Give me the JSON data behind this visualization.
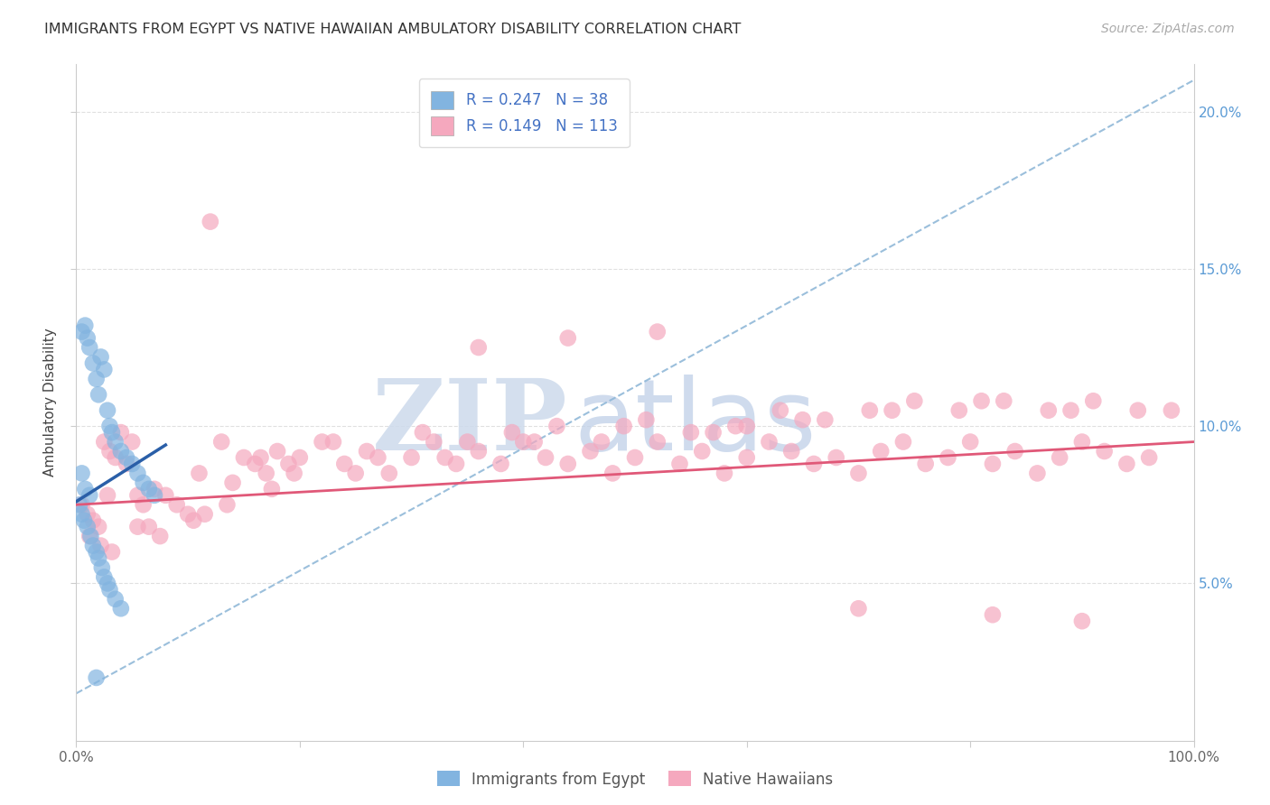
{
  "title": "IMMIGRANTS FROM EGYPT VS NATIVE HAWAIIAN AMBULATORY DISABILITY CORRELATION CHART",
  "source_text": "Source: ZipAtlas.com",
  "ylabel": "Ambulatory Disability",
  "xlim": [
    0.0,
    100.0
  ],
  "ylim": [
    0.0,
    21.5
  ],
  "xticks": [
    0.0,
    20.0,
    40.0,
    60.0,
    80.0,
    100.0
  ],
  "yticks": [
    5.0,
    10.0,
    15.0,
    20.0
  ],
  "ytick_labels_right": [
    "5.0%",
    "10.0%",
    "15.0%",
    "20.0%"
  ],
  "xtick_labels": [
    "0.0%",
    "",
    "",
    "",
    "",
    "100.0%"
  ],
  "legend_r1": "R = 0.247",
  "legend_n1": "N = 38",
  "legend_r2": "R = 0.149",
  "legend_n2": "N = 113",
  "blue_color": "#82b4e0",
  "pink_color": "#f5a8be",
  "blue_line_color": "#2a5fa8",
  "pink_line_color": "#e05878",
  "dashed_line_color": "#90b8d8",
  "watermark_zip_color": "#c8d8ec",
  "watermark_atlas_color": "#b8cce4",
  "grid_color": "#e0e0e0",
  "blue_scatter_x": [
    0.5,
    0.8,
    1.0,
    1.2,
    1.5,
    1.8,
    2.0,
    2.2,
    2.5,
    2.8,
    3.0,
    3.2,
    3.5,
    4.0,
    4.5,
    5.0,
    5.5,
    6.0,
    6.5,
    7.0,
    0.3,
    0.5,
    0.7,
    1.0,
    1.3,
    1.5,
    1.8,
    2.0,
    2.3,
    2.5,
    2.8,
    3.0,
    3.5,
    4.0,
    0.5,
    0.8,
    1.2,
    1.8
  ],
  "blue_scatter_y": [
    13.0,
    13.2,
    12.8,
    12.5,
    12.0,
    11.5,
    11.0,
    12.2,
    11.8,
    10.5,
    10.0,
    9.8,
    9.5,
    9.2,
    9.0,
    8.8,
    8.5,
    8.2,
    8.0,
    7.8,
    7.5,
    7.2,
    7.0,
    6.8,
    6.5,
    6.2,
    6.0,
    5.8,
    5.5,
    5.2,
    5.0,
    4.8,
    4.5,
    4.2,
    8.5,
    8.0,
    7.8,
    2.0
  ],
  "pink_scatter_x": [
    0.5,
    1.0,
    1.5,
    2.0,
    2.5,
    3.0,
    3.5,
    4.0,
    4.5,
    5.0,
    5.5,
    6.0,
    7.0,
    8.0,
    9.0,
    10.0,
    11.0,
    12.0,
    13.0,
    14.0,
    15.0,
    16.0,
    17.0,
    18.0,
    19.0,
    20.0,
    22.0,
    24.0,
    26.0,
    28.0,
    30.0,
    32.0,
    34.0,
    36.0,
    38.0,
    40.0,
    42.0,
    44.0,
    46.0,
    48.0,
    50.0,
    52.0,
    54.0,
    56.0,
    58.0,
    60.0,
    62.0,
    64.0,
    66.0,
    68.0,
    70.0,
    72.0,
    74.0,
    76.0,
    78.0,
    80.0,
    82.0,
    84.0,
    86.0,
    88.0,
    90.0,
    92.0,
    94.0,
    96.0,
    98.0,
    1.2,
    2.2,
    3.2,
    5.5,
    7.5,
    10.5,
    13.5,
    16.5,
    19.5,
    23.0,
    27.0,
    31.0,
    35.0,
    39.0,
    43.0,
    47.0,
    51.0,
    55.0,
    59.0,
    63.0,
    67.0,
    71.0,
    75.0,
    79.0,
    83.0,
    87.0,
    91.0,
    95.0,
    2.8,
    6.5,
    11.5,
    17.5,
    25.0,
    33.0,
    41.0,
    49.0,
    57.0,
    65.0,
    73.0,
    81.0,
    89.0,
    36.0,
    44.0,
    52.0,
    60.0,
    70.0,
    82.0,
    90.0
  ],
  "pink_scatter_y": [
    7.5,
    7.2,
    7.0,
    6.8,
    9.5,
    9.2,
    9.0,
    9.8,
    8.8,
    9.5,
    7.8,
    7.5,
    8.0,
    7.8,
    7.5,
    7.2,
    8.5,
    16.5,
    9.5,
    8.2,
    9.0,
    8.8,
    8.5,
    9.2,
    8.8,
    9.0,
    9.5,
    8.8,
    9.2,
    8.5,
    9.0,
    9.5,
    8.8,
    9.2,
    8.8,
    9.5,
    9.0,
    8.8,
    9.2,
    8.5,
    9.0,
    9.5,
    8.8,
    9.2,
    8.5,
    9.0,
    9.5,
    9.2,
    8.8,
    9.0,
    8.5,
    9.2,
    9.5,
    8.8,
    9.0,
    9.5,
    8.8,
    9.2,
    8.5,
    9.0,
    9.5,
    9.2,
    8.8,
    9.0,
    10.5,
    6.5,
    6.2,
    6.0,
    6.8,
    6.5,
    7.0,
    7.5,
    9.0,
    8.5,
    9.5,
    9.0,
    9.8,
    9.5,
    9.8,
    10.0,
    9.5,
    10.2,
    9.8,
    10.0,
    10.5,
    10.2,
    10.5,
    10.8,
    10.5,
    10.8,
    10.5,
    10.8,
    10.5,
    7.8,
    6.8,
    7.2,
    8.0,
    8.5,
    9.0,
    9.5,
    10.0,
    9.8,
    10.2,
    10.5,
    10.8,
    10.5,
    12.5,
    12.8,
    13.0,
    10.0,
    4.2,
    4.0,
    3.8
  ]
}
